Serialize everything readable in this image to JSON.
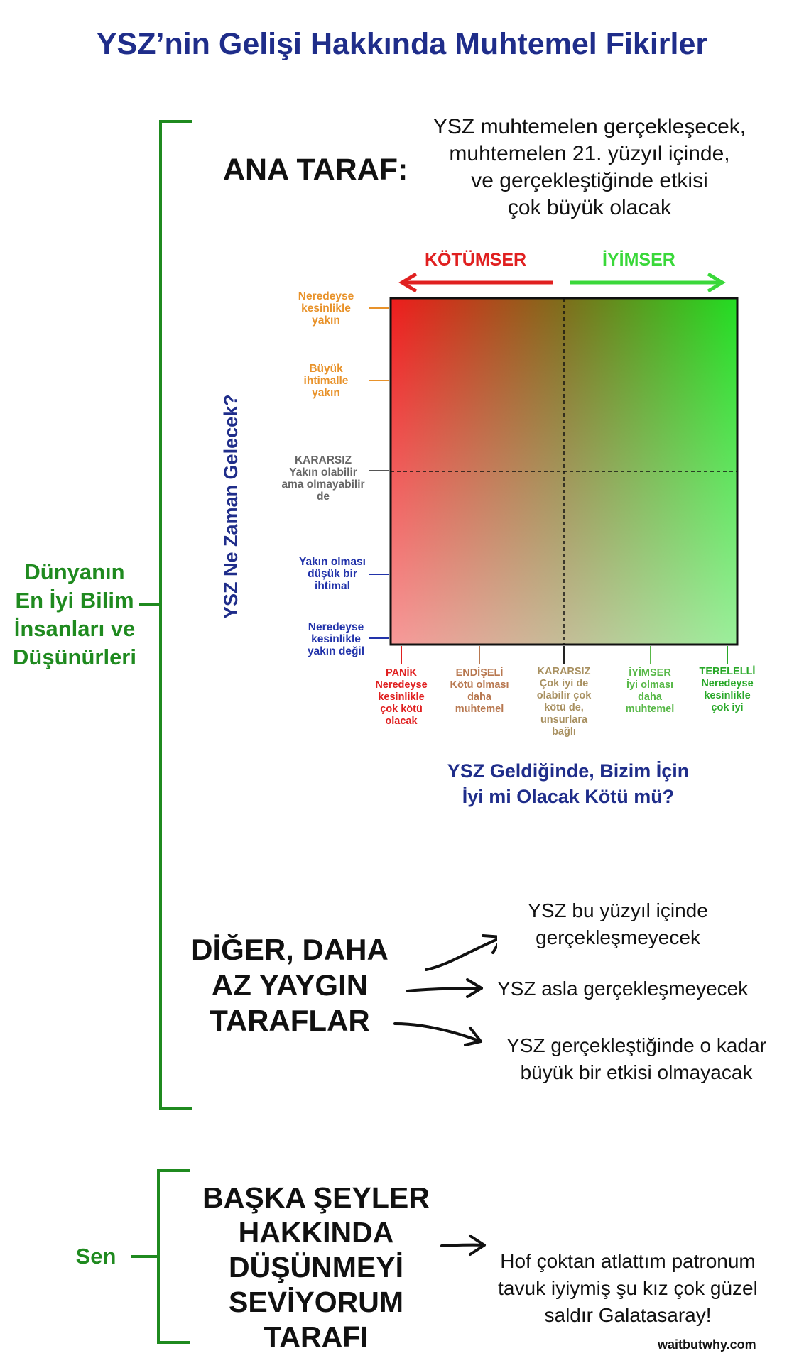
{
  "title": "YSZ’nin Gelişi Hakkında Muhtemel Fikirler",
  "scientists": {
    "label_lines": [
      "Dünyanın",
      "En İyi Bilim",
      "İnsanları ve",
      "Düşünürleri"
    ],
    "main_camp": {
      "heading": "ANA TARAF:",
      "description_lines": [
        "YSZ muhtemelen gerçekleşecek,",
        "muhtemelen 21. yüzyıl içinde,",
        "ve gerçekleştiğinde etkisi",
        "çok büyük olacak"
      ]
    },
    "matrix": {
      "pessimist_label": "KÖTÜMSER",
      "optimist_label": "İYİMSER",
      "y_axis_title": "YSZ Ne Zaman Gelecek?",
      "x_axis_title_lines": [
        "YSZ Geldiğinde, Bizim İçin",
        "İyi mi Olacak Kötü mü?"
      ],
      "y_levels": [
        {
          "lines": [
            "Neredeyse",
            "kesinlikle",
            "yakın"
          ],
          "color": "#e8922a"
        },
        {
          "lines": [
            "Büyük",
            "ihtimalle",
            "yakın"
          ],
          "color": "#e8922a"
        },
        {
          "lines": [
            "KARARSIZ",
            "Yakın olabilir",
            "ama olmayabilir",
            "de"
          ],
          "color": "#666666"
        },
        {
          "lines": [
            "Yakın olması",
            "düşük bir",
            "ihtimal"
          ],
          "color": "#2233aa"
        },
        {
          "lines": [
            "Neredeyse",
            "kesinlikle",
            "yakın değil"
          ],
          "color": "#2233aa"
        }
      ],
      "x_levels": [
        {
          "lines": [
            "PANİK",
            "Neredeyse",
            "kesinlikle",
            "çok kötü",
            "olacak"
          ],
          "color": "#e02020"
        },
        {
          "lines": [
            "ENDİŞELİ",
            "Kötü olması",
            "daha",
            "muhtemel"
          ],
          "color": "#b87850"
        },
        {
          "lines": [
            "KARARSIZ",
            "Çok iyi de",
            "olabilir çok",
            "kötü de,",
            "unsurlara",
            "bağlı"
          ],
          "color": "#a89060"
        },
        {
          "lines": [
            "İYİMSER",
            "İyi olması",
            "daha",
            "muhtemel"
          ],
          "color": "#58b848"
        },
        {
          "lines": [
            "TERELELLİ",
            "Neredeyse",
            "kesinlikle",
            "çok iyi"
          ],
          "color": "#28a828"
        }
      ]
    },
    "other_camps": {
      "heading_lines": [
        "DİĞER, DAHA",
        "AZ YAYGIN",
        "TARAFLAR"
      ],
      "items": [
        {
          "lines": [
            "YSZ bu yüzyıl içinde",
            "gerçekleşmeyecek"
          ]
        },
        {
          "lines": [
            "YSZ asla gerçekleşmeyecek"
          ]
        },
        {
          "lines": [
            "YSZ gerçekleştiğinde o kadar",
            "büyük bir etkisi olmayacak"
          ]
        }
      ]
    }
  },
  "you": {
    "label": "Sen",
    "heading_lines": [
      "BAŞKA ŞEYLER",
      "HAKKINDA",
      "DÜŞÜNMEYİ",
      "SEVİYORUM",
      "TARAFI"
    ],
    "thought_lines": [
      "Hof çoktan atlattım patronum",
      "tavuk iyiymiş şu kız çok güzel",
      "saldır Galatasaray!"
    ]
  },
  "credit": "waitbutwhy.com",
  "colors": {
    "title": "#1f2d8a",
    "bracket": "#1f8a1f",
    "pessimist": "#e02020",
    "optimist": "#3ad83a"
  }
}
